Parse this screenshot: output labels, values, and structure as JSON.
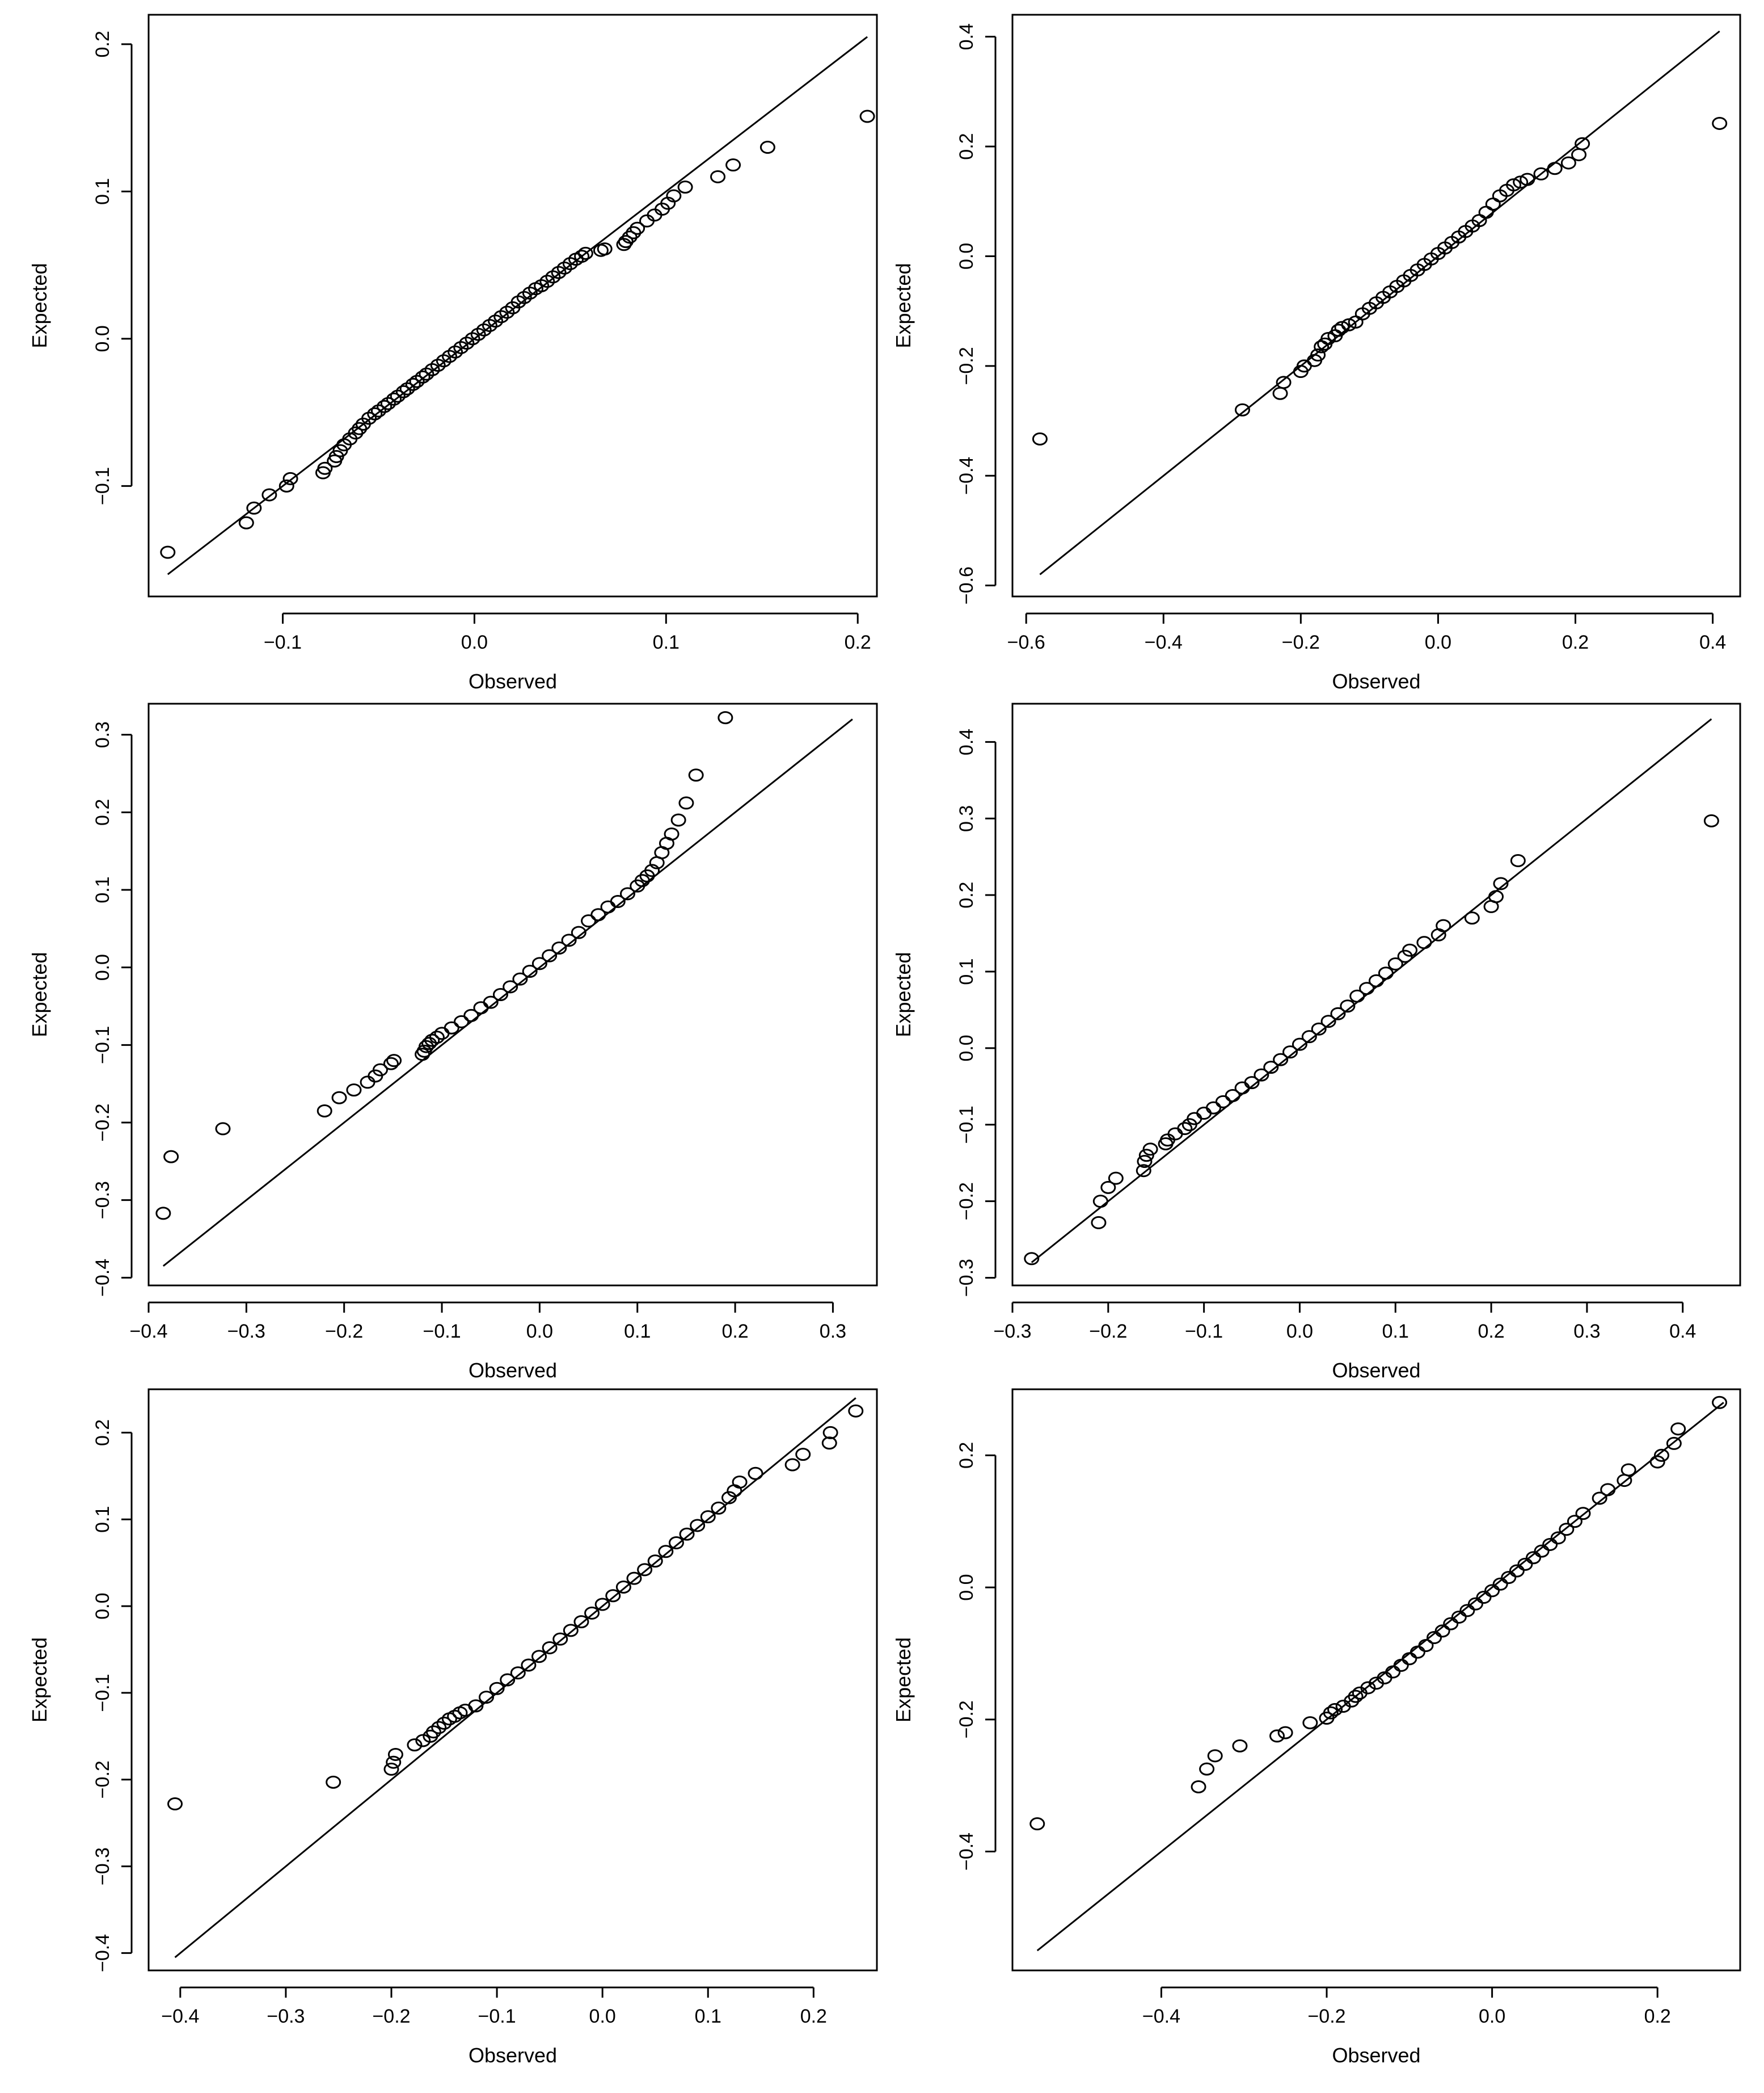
{
  "chart_data": [
    {
      "type": "scatter",
      "title": "",
      "xlabel": "Observed",
      "ylabel": "Expected",
      "xlim": [
        -0.17,
        0.21
      ],
      "ylim": [
        -0.175,
        0.22
      ],
      "xticks": [
        -0.1,
        0.0,
        0.1,
        0.2
      ],
      "xtick_labels": [
        "−0.1",
        "0.0",
        "0.1",
        "0.2"
      ],
      "yticks": [
        -0.1,
        0.0,
        0.1,
        0.2
      ],
      "ytick_labels": [
        "−0.1",
        "0.0",
        "0.1",
        "0.2"
      ],
      "grid": false,
      "reference_line": {
        "x": [
          -0.16,
          0.205
        ],
        "y": [
          -0.16,
          0.205
        ]
      },
      "series": [
        {
          "x": [
            -0.16,
            -0.119,
            -0.115,
            -0.107,
            -0.098,
            -0.096,
            -0.079,
            -0.078,
            -0.073,
            -0.072,
            -0.07,
            -0.068,
            -0.065,
            -0.062,
            -0.06,
            -0.058,
            -0.055,
            -0.052,
            -0.05,
            -0.047,
            -0.045,
            -0.042,
            -0.04,
            -0.037,
            -0.035,
            -0.032,
            -0.03,
            -0.027,
            -0.025,
            -0.022,
            -0.019,
            -0.016,
            -0.013,
            -0.01,
            -0.007,
            -0.004,
            -0.001,
            0.002,
            0.005,
            0.008,
            0.011,
            0.014,
            0.017,
            0.02,
            0.023,
            0.026,
            0.029,
            0.032,
            0.035,
            0.038,
            0.041,
            0.044,
            0.047,
            0.05,
            0.053,
            0.056,
            0.058,
            0.066,
            0.068,
            0.078,
            0.079,
            0.081,
            0.083,
            0.085,
            0.09,
            0.094,
            0.098,
            0.101,
            0.104,
            0.11,
            0.127,
            0.135,
            0.153,
            0.205
          ],
          "y": [
            -0.145,
            -0.125,
            -0.115,
            -0.106,
            -0.1,
            -0.095,
            -0.091,
            -0.088,
            -0.083,
            -0.08,
            -0.076,
            -0.072,
            -0.068,
            -0.064,
            -0.061,
            -0.058,
            -0.054,
            -0.051,
            -0.049,
            -0.046,
            -0.044,
            -0.041,
            -0.039,
            -0.036,
            -0.034,
            -0.031,
            -0.029,
            -0.026,
            -0.024,
            -0.021,
            -0.018,
            -0.015,
            -0.012,
            -0.009,
            -0.006,
            -0.003,
            0.0,
            0.003,
            0.006,
            0.009,
            0.012,
            0.015,
            0.018,
            0.021,
            0.025,
            0.028,
            0.031,
            0.034,
            0.036,
            0.039,
            0.042,
            0.045,
            0.048,
            0.051,
            0.054,
            0.056,
            0.058,
            0.06,
            0.061,
            0.064,
            0.066,
            0.069,
            0.072,
            0.075,
            0.08,
            0.084,
            0.088,
            0.092,
            0.097,
            0.103,
            0.11,
            0.118,
            0.13,
            0.151
          ]
        }
      ]
    },
    {
      "type": "scatter",
      "title": "",
      "xlabel": "Observed",
      "ylabel": "Expected",
      "xlim": [
        -0.62,
        0.44
      ],
      "ylim": [
        -0.62,
        0.44
      ],
      "xticks": [
        -0.6,
        -0.4,
        -0.2,
        0.0,
        0.2,
        0.4
      ],
      "xtick_labels": [
        "−0.6",
        "−0.4",
        "−0.2",
        "0.0",
        "0.2",
        "0.4"
      ],
      "yticks": [
        -0.6,
        -0.4,
        -0.2,
        0.0,
        0.2,
        0.4
      ],
      "ytick_labels": [
        "−0.6",
        "−0.4",
        "−0.2",
        "0.0",
        "0.2",
        "0.4"
      ],
      "grid": false,
      "reference_line": {
        "x": [
          -0.58,
          0.41
        ],
        "y": [
          -0.58,
          0.41
        ]
      },
      "series": [
        {
          "x": [
            -0.58,
            -0.285,
            -0.23,
            -0.225,
            -0.2,
            -0.195,
            -0.18,
            -0.175,
            -0.17,
            -0.165,
            -0.16,
            -0.15,
            -0.145,
            -0.14,
            -0.13,
            -0.12,
            -0.11,
            -0.1,
            -0.09,
            -0.08,
            -0.07,
            -0.06,
            -0.05,
            -0.04,
            -0.03,
            -0.02,
            -0.01,
            0.0,
            0.01,
            0.02,
            0.03,
            0.04,
            0.05,
            0.06,
            0.07,
            0.08,
            0.09,
            0.1,
            0.11,
            0.12,
            0.13,
            0.15,
            0.17,
            0.19,
            0.205,
            0.21,
            0.41
          ],
          "y": [
            -0.333,
            -0.28,
            -0.25,
            -0.23,
            -0.21,
            -0.2,
            -0.19,
            -0.18,
            -0.165,
            -0.16,
            -0.15,
            -0.145,
            -0.135,
            -0.13,
            -0.125,
            -0.12,
            -0.105,
            -0.095,
            -0.085,
            -0.075,
            -0.065,
            -0.055,
            -0.045,
            -0.035,
            -0.025,
            -0.015,
            -0.005,
            0.005,
            0.015,
            0.025,
            0.035,
            0.045,
            0.055,
            0.065,
            0.08,
            0.095,
            0.11,
            0.12,
            0.13,
            0.135,
            0.14,
            0.15,
            0.16,
            0.17,
            0.185,
            0.205,
            0.242
          ]
        }
      ]
    },
    {
      "type": "scatter",
      "title": "",
      "xlabel": "Observed",
      "ylabel": "Expected",
      "xlim": [
        -0.4,
        0.345
      ],
      "ylim": [
        -0.41,
        0.34
      ],
      "xticks": [
        -0.4,
        -0.3,
        -0.2,
        -0.1,
        0.0,
        0.1,
        0.2,
        0.3
      ],
      "xtick_labels": [
        "−0.4",
        "−0.3",
        "−0.2",
        "−0.1",
        "0.0",
        "0.1",
        "0.2",
        "0.3"
      ],
      "yticks": [
        -0.4,
        -0.3,
        -0.2,
        -0.1,
        0.0,
        0.1,
        0.2,
        0.3
      ],
      "ytick_labels": [
        "−0.4",
        "−0.3",
        "−0.2",
        "−0.1",
        "0.0",
        "0.1",
        "0.2",
        "0.3"
      ],
      "grid": false,
      "reference_line": {
        "x": [
          -0.385,
          0.32
        ],
        "y": [
          -0.385,
          0.32
        ]
      },
      "series": [
        {
          "x": [
            -0.385,
            -0.377,
            -0.324,
            -0.22,
            -0.205,
            -0.19,
            -0.176,
            -0.168,
            -0.163,
            -0.152,
            -0.149,
            -0.12,
            -0.118,
            -0.116,
            -0.113,
            -0.11,
            -0.105,
            -0.1,
            -0.09,
            -0.08,
            -0.07,
            -0.06,
            -0.05,
            -0.04,
            -0.03,
            -0.02,
            -0.01,
            0.0,
            0.01,
            0.02,
            0.03,
            0.04,
            0.05,
            0.06,
            0.07,
            0.08,
            0.09,
            0.1,
            0.105,
            0.11,
            0.115,
            0.12,
            0.125,
            0.13,
            0.135,
            0.142,
            0.15,
            0.16,
            0.19
          ],
          "y": [
            -0.317,
            -0.244,
            -0.208,
            -0.185,
            -0.168,
            -0.158,
            -0.148,
            -0.14,
            -0.132,
            -0.124,
            -0.12,
            -0.112,
            -0.108,
            -0.102,
            -0.098,
            -0.094,
            -0.09,
            -0.085,
            -0.078,
            -0.07,
            -0.062,
            -0.052,
            -0.045,
            -0.035,
            -0.025,
            -0.015,
            -0.005,
            0.005,
            0.015,
            0.025,
            0.035,
            0.045,
            0.06,
            0.068,
            0.078,
            0.085,
            0.095,
            0.105,
            0.112,
            0.118,
            0.125,
            0.135,
            0.148,
            0.16,
            0.172,
            0.19,
            0.212,
            0.248,
            0.322
          ]
        }
      ]
    },
    {
      "type": "scatter",
      "title": "",
      "xlabel": "Observed",
      "ylabel": "Expected",
      "xlim": [
        -0.3,
        0.46
      ],
      "ylim": [
        -0.31,
        0.45
      ],
      "xticks": [
        -0.3,
        -0.2,
        -0.1,
        0.0,
        0.1,
        0.2,
        0.3,
        0.4
      ],
      "xtick_labels": [
        "−0.3",
        "−0.2",
        "−0.1",
        "0.0",
        "0.1",
        "0.2",
        "0.3",
        "0.4"
      ],
      "yticks": [
        -0.3,
        -0.2,
        -0.1,
        0.0,
        0.1,
        0.2,
        0.3,
        0.4
      ],
      "ytick_labels": [
        "−0.3",
        "−0.2",
        "−0.1",
        "0.0",
        "0.1",
        "0.2",
        "0.3",
        "0.4"
      ],
      "grid": false,
      "reference_line": {
        "x": [
          -0.28,
          0.43
        ],
        "y": [
          -0.28,
          0.43
        ]
      },
      "series": [
        {
          "x": [
            -0.28,
            -0.21,
            -0.208,
            -0.2,
            -0.192,
            -0.163,
            -0.162,
            -0.16,
            -0.156,
            -0.14,
            -0.138,
            -0.13,
            -0.12,
            -0.115,
            -0.11,
            -0.1,
            -0.09,
            -0.08,
            -0.07,
            -0.06,
            -0.05,
            -0.04,
            -0.03,
            -0.02,
            -0.01,
            0.0,
            0.01,
            0.02,
            0.03,
            0.04,
            0.05,
            0.06,
            0.07,
            0.08,
            0.09,
            0.1,
            0.11,
            0.115,
            0.13,
            0.145,
            0.15,
            0.18,
            0.2,
            0.205,
            0.21,
            0.228,
            0.43
          ],
          "y": [
            -0.275,
            -0.228,
            -0.2,
            -0.182,
            -0.17,
            -0.16,
            -0.148,
            -0.14,
            -0.132,
            -0.125,
            -0.12,
            -0.112,
            -0.105,
            -0.1,
            -0.092,
            -0.085,
            -0.078,
            -0.07,
            -0.062,
            -0.052,
            -0.045,
            -0.035,
            -0.025,
            -0.015,
            -0.005,
            0.005,
            0.015,
            0.025,
            0.035,
            0.045,
            0.055,
            0.068,
            0.078,
            0.088,
            0.098,
            0.11,
            0.12,
            0.128,
            0.138,
            0.148,
            0.16,
            0.17,
            0.185,
            0.198,
            0.215,
            0.245,
            0.297
          ]
        }
      ]
    },
    {
      "type": "scatter",
      "title": "",
      "xlabel": "Observed",
      "ylabel": "Expected",
      "xlim": [
        -0.43,
        0.26
      ],
      "ylim": [
        -0.42,
        0.25
      ],
      "xticks": [
        -0.4,
        -0.3,
        -0.2,
        -0.1,
        0.0,
        0.1,
        0.2
      ],
      "xtick_labels": [
        "−0.4",
        "−0.3",
        "−0.2",
        "−0.1",
        "0.0",
        "0.1",
        "0.2"
      ],
      "yticks": [
        -0.4,
        -0.3,
        -0.2,
        -0.1,
        0.0,
        0.1,
        0.2
      ],
      "ytick_labels": [
        "−0.4",
        "−0.3",
        "−0.2",
        "−0.1",
        "0.0",
        "0.1",
        "0.2"
      ],
      "grid": false,
      "reference_line": {
        "x": [
          -0.405,
          0.24
        ],
        "y": [
          -0.405,
          0.24
        ]
      },
      "series": [
        {
          "x": [
            -0.405,
            -0.255,
            -0.2,
            -0.198,
            -0.196,
            -0.178,
            -0.17,
            -0.163,
            -0.16,
            -0.155,
            -0.15,
            -0.145,
            -0.14,
            -0.135,
            -0.13,
            -0.12,
            -0.11,
            -0.1,
            -0.09,
            -0.08,
            -0.07,
            -0.06,
            -0.05,
            -0.04,
            -0.03,
            -0.02,
            -0.01,
            0.0,
            0.01,
            0.02,
            0.03,
            0.04,
            0.05,
            0.06,
            0.07,
            0.08,
            0.09,
            0.1,
            0.11,
            0.12,
            0.125,
            0.13,
            0.145,
            0.18,
            0.19,
            0.215,
            0.216,
            0.24
          ],
          "y": [
            -0.228,
            -0.203,
            -0.188,
            -0.18,
            -0.171,
            -0.16,
            -0.155,
            -0.15,
            -0.145,
            -0.14,
            -0.135,
            -0.13,
            -0.127,
            -0.123,
            -0.12,
            -0.115,
            -0.105,
            -0.095,
            -0.085,
            -0.077,
            -0.068,
            -0.058,
            -0.048,
            -0.038,
            -0.028,
            -0.018,
            -0.008,
            0.002,
            0.012,
            0.022,
            0.032,
            0.042,
            0.052,
            0.063,
            0.073,
            0.083,
            0.093,
            0.103,
            0.113,
            0.125,
            0.133,
            0.143,
            0.153,
            0.163,
            0.175,
            0.188,
            0.2,
            0.225
          ]
        }
      ]
    },
    {
      "type": "scatter",
      "title": "",
      "xlabel": "Observed",
      "ylabel": "Expected",
      "xlim": [
        -0.58,
        0.3
      ],
      "ylim": [
        -0.58,
        0.3
      ],
      "xticks": [
        -0.4,
        -0.2,
        0.0,
        0.2
      ],
      "xtick_labels": [
        "−0.4",
        "−0.2",
        "0.0",
        "0.2"
      ],
      "yticks": [
        -0.4,
        -0.2,
        0.0,
        0.2
      ],
      "ytick_labels": [
        "−0.4",
        "−0.2",
        "0.0",
        "0.2"
      ],
      "grid": false,
      "reference_line": {
        "x": [
          -0.55,
          0.28
        ],
        "y": [
          -0.55,
          0.28
        ]
      },
      "series": [
        {
          "x": [
            -0.55,
            -0.355,
            -0.345,
            -0.335,
            -0.305,
            -0.26,
            -0.25,
            -0.22,
            -0.2,
            -0.195,
            -0.19,
            -0.18,
            -0.17,
            -0.165,
            -0.16,
            -0.15,
            -0.14,
            -0.13,
            -0.12,
            -0.11,
            -0.1,
            -0.09,
            -0.08,
            -0.07,
            -0.06,
            -0.05,
            -0.04,
            -0.03,
            -0.02,
            -0.01,
            0.0,
            0.01,
            0.02,
            0.03,
            0.04,
            0.05,
            0.06,
            0.07,
            0.08,
            0.09,
            0.1,
            0.11,
            0.13,
            0.14,
            0.16,
            0.165,
            0.2,
            0.205,
            0.22,
            0.225,
            0.275
          ],
          "y": [
            -0.358,
            -0.302,
            -0.275,
            -0.255,
            -0.24,
            -0.225,
            -0.22,
            -0.205,
            -0.198,
            -0.19,
            -0.185,
            -0.18,
            -0.172,
            -0.165,
            -0.16,
            -0.152,
            -0.145,
            -0.137,
            -0.128,
            -0.118,
            -0.108,
            -0.098,
            -0.088,
            -0.076,
            -0.066,
            -0.055,
            -0.045,
            -0.035,
            -0.025,
            -0.015,
            -0.005,
            0.005,
            0.015,
            0.025,
            0.035,
            0.045,
            0.055,
            0.065,
            0.075,
            0.088,
            0.1,
            0.112,
            0.135,
            0.148,
            0.162,
            0.178,
            0.19,
            0.2,
            0.218,
            0.24,
            0.28
          ]
        }
      ]
    }
  ]
}
